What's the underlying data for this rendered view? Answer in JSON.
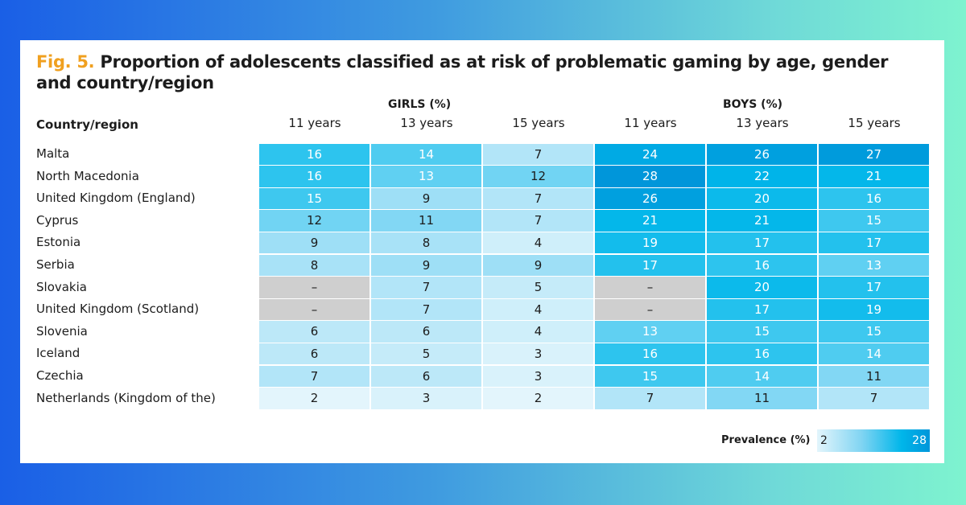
{
  "title": {
    "fig_label": "Fig. 5.",
    "text": " Proportion of adolescents classified as at risk of problematic gaming by age, gender and country/region"
  },
  "header": {
    "country_label": "Country/region",
    "groups": [
      "GIRLS (%)",
      "BOYS (%)"
    ]
  },
  "legend": {
    "label": "Prevalence (%)",
    "min": "2",
    "max": "28"
  },
  "colors": {
    "low": "#e3f5fc",
    "high": "#0096da",
    "missing": "#cfcfcf"
  },
  "chart_data": {
    "type": "heatmap",
    "columns": [
      "11 years",
      "13 years",
      "15 years",
      "11 years",
      "13 years",
      "15 years"
    ],
    "column_groups": [
      "GIRLS (%)",
      "GIRLS (%)",
      "GIRLS (%)",
      "BOYS (%)",
      "BOYS (%)",
      "BOYS (%)"
    ],
    "rows": [
      {
        "country": "Malta",
        "values": [
          16,
          14,
          7,
          24,
          26,
          27
        ]
      },
      {
        "country": "North Macedonia",
        "values": [
          16,
          13,
          12,
          28,
          22,
          21
        ]
      },
      {
        "country": "United Kingdom (England)",
        "values": [
          15,
          9,
          7,
          26,
          20,
          16
        ]
      },
      {
        "country": "Cyprus",
        "values": [
          12,
          11,
          7,
          21,
          21,
          15
        ]
      },
      {
        "country": "Estonia",
        "values": [
          9,
          8,
          4,
          19,
          17,
          17
        ]
      },
      {
        "country": "Serbia",
        "values": [
          8,
          9,
          9,
          17,
          16,
          13
        ]
      },
      {
        "country": "Slovakia",
        "values": [
          null,
          7,
          5,
          null,
          20,
          17
        ]
      },
      {
        "country": "United Kingdom (Scotland)",
        "values": [
          null,
          7,
          4,
          null,
          17,
          19
        ]
      },
      {
        "country": "Slovenia",
        "values": [
          6,
          6,
          4,
          13,
          15,
          15
        ]
      },
      {
        "country": "Iceland",
        "values": [
          6,
          5,
          3,
          16,
          16,
          14
        ]
      },
      {
        "country": "Czechia",
        "values": [
          7,
          6,
          3,
          15,
          14,
          11
        ]
      },
      {
        "country": "Netherlands (Kingdom of the)",
        "values": [
          2,
          3,
          2,
          7,
          11,
          7
        ]
      }
    ],
    "missing_label": "–",
    "color_range": [
      2,
      28
    ]
  }
}
